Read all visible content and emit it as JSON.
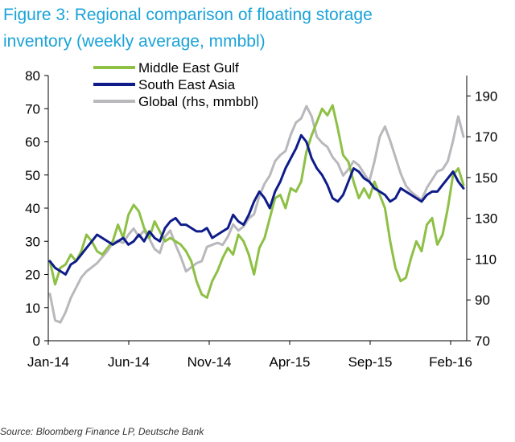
{
  "title_line1": "Figure 3: Regional comparison of floating storage",
  "title_line2": "inventory (weekly average, mmbbl)",
  "source": "Source: Bloomberg Finance LP, Deutsche Bank",
  "chart_data": {
    "type": "line",
    "x_ticks": [
      "Jan-14",
      "Jun-14",
      "Nov-14",
      "Apr-15",
      "Sep-15",
      "Feb-16"
    ],
    "x_range": [
      "2014-01",
      "2016-03"
    ],
    "ylim_left": [
      0,
      80
    ],
    "yticks_left": [
      0,
      10,
      20,
      30,
      40,
      50,
      60,
      70,
      80
    ],
    "ylim_right": [
      70,
      200
    ],
    "yticks_right": [
      70,
      90,
      110,
      130,
      150,
      170,
      190
    ],
    "legend_position": "top-left",
    "grid": false,
    "series": [
      {
        "name": "Middle East Gulf",
        "axis": "left",
        "color": "#8dc045",
        "values": [
          24,
          17,
          22,
          23,
          26,
          24,
          27,
          32,
          30,
          27,
          26,
          28,
          30,
          35,
          31,
          38,
          41,
          39,
          34,
          31,
          36,
          33,
          30,
          31,
          30,
          29,
          27,
          24,
          18,
          14,
          13,
          18,
          21,
          25,
          28,
          26,
          32,
          30,
          26,
          20,
          28,
          31,
          37,
          43,
          44,
          40,
          46,
          45,
          48,
          57,
          62,
          66,
          70,
          68,
          71,
          64,
          56,
          54,
          48,
          43,
          46,
          43,
          48,
          44,
          40,
          30,
          22,
          18,
          19,
          25,
          30,
          27,
          35,
          37,
          29,
          32,
          40,
          50,
          52,
          47
        ]
      },
      {
        "name": "South East Asia",
        "axis": "left",
        "color": "#0e1c8a",
        "values": [
          24,
          22,
          21,
          20,
          23,
          24,
          26,
          28,
          30,
          32,
          31,
          30,
          29,
          30,
          31,
          29,
          30,
          32,
          30,
          33,
          31,
          30,
          34,
          36,
          37,
          35,
          35,
          34,
          33,
          33,
          34,
          31,
          32,
          33,
          34,
          38,
          36,
          35,
          38,
          42,
          45,
          43,
          40,
          45,
          48,
          52,
          55,
          58,
          62,
          60,
          55,
          52,
          50,
          47,
          43,
          42,
          44,
          48,
          52,
          51,
          49,
          48,
          46,
          45,
          44,
          42,
          43,
          46,
          45,
          44,
          43,
          42,
          44,
          45,
          45,
          47,
          49,
          51,
          48,
          46
        ]
      },
      {
        "name": "Global (rhs, mmbbl)",
        "axis": "right",
        "color": "#b8b8bd",
        "values": [
          93,
          80,
          79,
          84,
          91,
          96,
          101,
          104,
          106,
          108,
          111,
          114,
          118,
          119,
          118,
          122,
          125,
          121,
          124,
          120,
          115,
          113,
          121,
          124,
          117,
          111,
          104,
          106,
          108,
          109,
          116,
          117,
          118,
          117,
          121,
          127,
          124,
          126,
          130,
          132,
          141,
          147,
          151,
          158,
          161,
          163,
          171,
          177,
          179,
          185,
          180,
          170,
          167,
          165,
          160,
          157,
          151,
          154,
          158,
          156,
          152,
          148,
          158,
          170,
          175,
          168,
          160,
          152,
          146,
          143,
          141,
          139,
          145,
          149,
          153,
          154,
          158,
          168,
          180,
          170
        ]
      }
    ]
  }
}
